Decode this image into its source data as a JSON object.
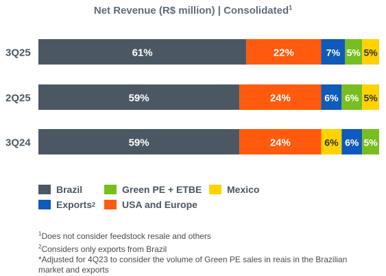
{
  "chart_data": {
    "type": "bar",
    "orientation": "horizontal",
    "stacked": true,
    "unit": "%",
    "title": "Net Revenue (R$ million)",
    "title_suffix": "| Consolidated",
    "title_sup": "1",
    "categories": [
      "3Q25",
      "2Q25",
      "3Q24"
    ],
    "series": [
      {
        "name": "Brazil",
        "color": "#4b5863",
        "values": [
          61,
          59,
          59
        ],
        "labels": [
          "61%",
          "59%",
          "59%"
        ],
        "label_color": "#ffffff"
      },
      {
        "name": "USA and Europe",
        "color": "#ff5a0e",
        "values": [
          22,
          24,
          24
        ],
        "labels": [
          "22%",
          "24%",
          "24%"
        ],
        "label_color": "#ffffff"
      },
      {
        "name": "Exports",
        "color": "#0f5aba",
        "values": [
          7,
          6,
          null
        ],
        "labels": [
          "7%",
          "6%",
          ""
        ],
        "label_color": "#ffffff"
      },
      {
        "name": "Green PE + ETBE",
        "color": "#78be20",
        "values": [
          5,
          6,
          null
        ],
        "labels": [
          "5%",
          "6%",
          ""
        ],
        "label_color": "#ffffff"
      },
      {
        "name": "Mexico",
        "color": "#ffd200",
        "values": [
          5,
          5,
          null
        ],
        "labels": [
          "5%",
          "5%",
          ""
        ],
        "label_color": "#333333"
      }
    ],
    "order_3Q24": [
      {
        "name": "Brazil",
        "color": "#4b5863",
        "value": 59,
        "label": "59%",
        "label_color": "#ffffff"
      },
      {
        "name": "USA and Europe",
        "color": "#ff5a0e",
        "value": 24,
        "label": "24%",
        "label_color": "#ffffff"
      },
      {
        "name": "Mexico",
        "color": "#ffd200",
        "value": 6,
        "label": "6%",
        "label_color": "#333333"
      },
      {
        "name": "Exports",
        "color": "#0f5aba",
        "value": 6,
        "label": "6%",
        "label_color": "#ffffff"
      },
      {
        "name": "Green PE + ETBE",
        "color": "#78be20",
        "value": 5,
        "label": "5%",
        "label_color": "#ffffff"
      }
    ],
    "legend": [
      {
        "name": "Brazil",
        "color": "#4b5863",
        "sup": ""
      },
      {
        "name": "Green PE + ETBE",
        "color": "#78be20",
        "sup": ""
      },
      {
        "name": "Mexico",
        "color": "#ffd200",
        "sup": ""
      },
      {
        "name": "Exports",
        "color": "#0f5aba",
        "sup": "2"
      },
      {
        "name": "USA and Europe",
        "color": "#ff5a0e",
        "sup": ""
      }
    ],
    "legend_position": "bottom-left",
    "grid": false,
    "xlim": [
      0,
      100
    ]
  },
  "notes": [
    {
      "sup": "1",
      "text": "Does not consider feedstock resale and others"
    },
    {
      "sup": "2",
      "text": "Considers only exports from Brazil"
    },
    {
      "sup": "*",
      "text": "Adjusted for 4Q23 to consider the volume of Green PE sales in reais in the Brazilian market and exports"
    }
  ]
}
